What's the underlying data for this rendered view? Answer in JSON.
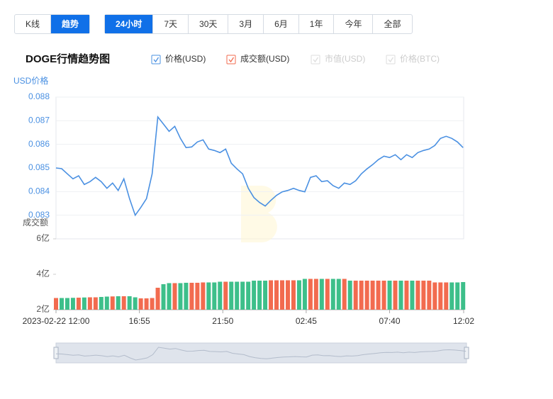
{
  "toggle": {
    "options": [
      "K线",
      "趋势"
    ],
    "active": 1
  },
  "periods": {
    "options": [
      "24小时",
      "7天",
      "30天",
      "3月",
      "6月",
      "1年",
      "今年",
      "全部"
    ],
    "active": 0
  },
  "chart_data": {
    "type": "line",
    "title": "DOGE行情趋势图",
    "ylabel": "USD价格",
    "y2label": "成交额",
    "x": [
      0,
      20,
      40,
      60,
      80,
      100,
      120,
      140,
      160,
      180,
      200,
      220,
      240,
      260,
      280,
      300,
      320,
      340,
      360,
      380,
      400,
      420,
      440,
      460,
      480,
      500,
      520,
      540,
      560,
      580,
      600,
      620,
      640,
      660,
      680,
      700,
      720,
      740,
      760,
      780,
      800,
      820,
      840,
      860,
      880,
      900,
      920,
      940,
      960,
      980,
      1000,
      1020,
      1040,
      1060,
      1080,
      1100,
      1120,
      1140,
      1160,
      1180,
      1200,
      1220,
      1240,
      1260,
      1280,
      1300,
      1320,
      1340,
      1360,
      1380,
      1400,
      1420,
      1440
    ],
    "xlim": [
      0,
      1442
    ],
    "xticks": [
      {
        "value": 0,
        "label": "2023-02-22 12:00"
      },
      {
        "value": 295,
        "label": "16:55"
      },
      {
        "value": 590,
        "label": "21:50"
      },
      {
        "value": 885,
        "label": "02:45"
      },
      {
        "value": 1180,
        "label": "07:40"
      },
      {
        "value": 1442,
        "label": "12:02"
      }
    ],
    "ylim": [
      0.082,
      0.088
    ],
    "yticks": [
      0.083,
      0.084,
      0.085,
      0.086,
      0.087,
      0.088
    ],
    "y2lim": [
      2,
      6
    ],
    "y2ticks": [
      {
        "value": 6,
        "label": "6亿"
      },
      {
        "value": 4,
        "label": "4亿"
      },
      {
        "value": 2,
        "label": "2亿"
      }
    ],
    "grid": true,
    "series": [
      {
        "name": "价格(USD)",
        "color": "#4a90e2",
        "visible": true,
        "values": [
          0.085,
          0.08497,
          0.08475,
          0.08454,
          0.08467,
          0.0843,
          0.08442,
          0.0846,
          0.08442,
          0.08414,
          0.08436,
          0.08405,
          0.08454,
          0.0837,
          0.083,
          0.08333,
          0.0837,
          0.08475,
          0.08716,
          0.08686,
          0.08655,
          0.08676,
          0.08625,
          0.08586,
          0.08589,
          0.0861,
          0.08619,
          0.0858,
          0.08574,
          0.08565,
          0.0858,
          0.0852,
          0.08496,
          0.08475,
          0.08414,
          0.08375,
          0.08354,
          0.08339,
          0.08363,
          0.08384,
          0.08399,
          0.08405,
          0.08414,
          0.08405,
          0.08399,
          0.0846,
          0.08467,
          0.08442,
          0.08446,
          0.08425,
          0.08414,
          0.08436,
          0.0843,
          0.08446,
          0.08475,
          0.08496,
          0.08514,
          0.08535,
          0.0855,
          0.08544,
          0.08556,
          0.08535,
          0.08556,
          0.08544,
          0.08565,
          0.08574,
          0.0858,
          0.08595,
          0.08625,
          0.08634,
          0.08625,
          0.0861,
          0.08586
        ]
      },
      {
        "name": "成交额(USD)",
        "type": "bar",
        "axis": "y2",
        "color": "#f26b4f",
        "colors": [
          "#f26b4f",
          "#3dbf8a"
        ],
        "visible": true,
        "values": [
          2.66,
          2.66,
          2.66,
          2.67,
          2.68,
          2.69,
          2.7,
          2.7,
          2.72,
          2.74,
          2.75,
          2.76,
          2.76,
          2.76,
          2.7,
          2.64,
          2.64,
          2.66,
          3.24,
          3.44,
          3.5,
          3.5,
          3.5,
          3.52,
          3.52,
          3.52,
          3.54,
          3.54,
          3.54,
          3.58,
          3.58,
          3.58,
          3.58,
          3.58,
          3.58,
          3.64,
          3.64,
          3.64,
          3.66,
          3.66,
          3.66,
          3.66,
          3.66,
          3.66,
          3.74,
          3.74,
          3.74,
          3.74,
          3.74,
          3.74,
          3.74,
          3.74,
          3.64,
          3.64,
          3.64,
          3.64,
          3.64,
          3.64,
          3.64,
          3.64,
          3.64,
          3.64,
          3.64,
          3.64,
          3.64,
          3.64,
          3.64,
          3.54,
          3.54,
          3.54,
          3.54,
          3.54,
          3.56
        ]
      },
      {
        "name": "市值(USD)",
        "color": "#cccccc",
        "visible": false
      },
      {
        "name": "价格(BTC)",
        "color": "#cccccc",
        "visible": false
      }
    ]
  }
}
